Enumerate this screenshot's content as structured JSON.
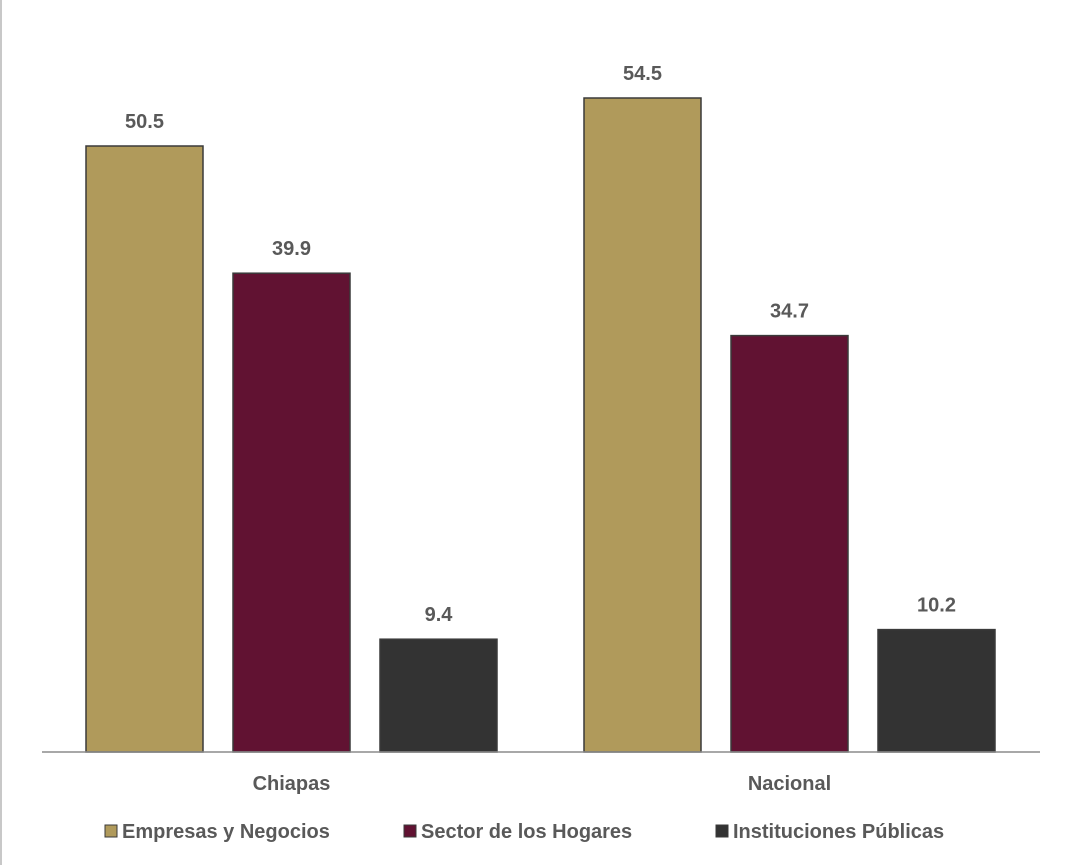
{
  "chart_data": {
    "type": "bar",
    "categories": [
      "Chiapas",
      "Nacional"
    ],
    "series": [
      {
        "name": "Empresas y Negocios",
        "values": [
          50.5,
          54.5
        ],
        "color": "#b09a5b"
      },
      {
        "name": "Sector de los Hogares",
        "values": [
          39.9,
          34.7
        ],
        "color": "#611232"
      },
      {
        "name": "Instituciones Públicas",
        "values": [
          9.4,
          10.2
        ],
        "color": "#333333"
      }
    ],
    "ylim": [
      0,
      60
    ],
    "grid": false,
    "legend_position": "bottom",
    "show_data_labels": true
  }
}
